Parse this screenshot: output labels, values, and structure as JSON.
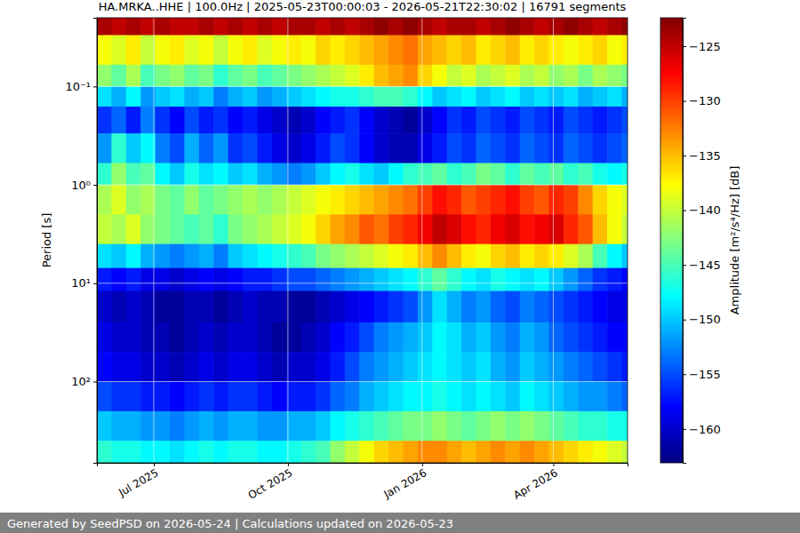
{
  "chart_data": {
    "type": "heatmap",
    "title": "HA.MRKA..HHE | 100.0Hz | 2025-05-23T00:00:03 - 2026-05-21T22:30:02 | 16791 segments",
    "y_label": "Period [s]",
    "footer": "Generated by SeedPSD on 2026-05-24 | Calculations updated on 2026-05-23",
    "log": "y",
    "grid": true,
    "xlim": [
      "2025-05-23T00:00:03",
      "2026-05-21T22:30:02"
    ],
    "xticks": [
      {
        "value": "2025-07-01",
        "label": "Jul 2025"
      },
      {
        "value": "2025-10-01",
        "label": "Oct 2025"
      },
      {
        "value": "2026-01-01",
        "label": "Jan 2026"
      },
      {
        "value": "2026-04-01",
        "label": "Apr 2026"
      }
    ],
    "ylim": [
      0.02,
      670
    ],
    "yticks": [
      {
        "value": 0.1,
        "label": "10⁻¹"
      },
      {
        "value": 1,
        "label": "10⁰"
      },
      {
        "value": 10,
        "label": "10¹"
      },
      {
        "value": 100,
        "label": "10²"
      }
    ],
    "x_bins": [
      "2025-05-23T00:00:03",
      "2025-06-02",
      "2025-06-12",
      "2025-06-22",
      "2025-07-02",
      "2025-07-12",
      "2025-07-22",
      "2025-08-01",
      "2025-08-11",
      "2025-08-21",
      "2025-08-31",
      "2025-09-10",
      "2025-09-20",
      "2025-09-30",
      "2025-10-10",
      "2025-10-20",
      "2025-10-30",
      "2025-11-09",
      "2025-11-19",
      "2025-11-29",
      "2025-12-09",
      "2025-12-19",
      "2025-12-29",
      "2026-01-08",
      "2026-01-18",
      "2026-01-28",
      "2026-02-07",
      "2026-02-17",
      "2026-02-27",
      "2026-03-09",
      "2026-03-19",
      "2026-03-29",
      "2026-04-08",
      "2026-04-18",
      "2026-04-28",
      "2026-05-08",
      "2026-05-18",
      "2026-05-21T22:30:02"
    ],
    "y_bins": [
      0.02,
      0.03,
      0.06,
      0.1,
      0.16,
      0.3,
      0.6,
      1,
      2,
      4,
      7,
      12,
      25,
      50,
      100,
      200,
      400,
      670
    ],
    "values": [
      [
        -124,
        -125,
        -124,
        -125,
        -124,
        -125,
        -125,
        -124,
        -125,
        -124,
        -125,
        -124,
        -125,
        -124,
        -124,
        -125,
        -124,
        -125,
        -124,
        -123,
        -124,
        -123,
        -124,
        -125,
        -124,
        -124,
        -125,
        -124,
        -123,
        -124,
        -125,
        -124,
        -123,
        -124,
        -125,
        -124,
        -123
      ],
      [
        -138,
        -139,
        -137,
        -140,
        -138,
        -137,
        -139,
        -138,
        -140,
        -138,
        -137,
        -139,
        -138,
        -137,
        -138,
        -136,
        -137,
        -136,
        -135,
        -134,
        -133,
        -132,
        -134,
        -135,
        -136,
        -135,
        -137,
        -136,
        -135,
        -137,
        -136,
        -137,
        -138,
        -137,
        -136,
        -138,
        -137
      ],
      [
        -142,
        -144,
        -141,
        -145,
        -143,
        -142,
        -144,
        -143,
        -146,
        -144,
        -143,
        -145,
        -144,
        -143,
        -142,
        -141,
        -140,
        -139,
        -137,
        -135,
        -134,
        -133,
        -136,
        -138,
        -140,
        -139,
        -141,
        -140,
        -139,
        -141,
        -140,
        -142,
        -141,
        -143,
        -141,
        -142,
        -143
      ],
      [
        -149,
        -151,
        -148,
        -152,
        -150,
        -149,
        -151,
        -150,
        -153,
        -151,
        -150,
        -152,
        -151,
        -150,
        -149,
        -148,
        -147,
        -147,
        -146,
        -145,
        -145,
        -146,
        -148,
        -150,
        -149,
        -148,
        -150,
        -149,
        -148,
        -150,
        -149,
        -150,
        -149,
        -151,
        -150,
        -149,
        -151
      ],
      [
        -156,
        -154,
        -157,
        -153,
        -156,
        -158,
        -155,
        -157,
        -156,
        -158,
        -157,
        -159,
        -160,
        -161,
        -160,
        -158,
        -157,
        -156,
        -158,
        -160,
        -161,
        -162,
        -160,
        -158,
        -156,
        -157,
        -155,
        -156,
        -157,
        -155,
        -156,
        -157,
        -155,
        -156,
        -157,
        -156,
        -155
      ],
      [
        -152,
        -146,
        -150,
        -148,
        -153,
        -155,
        -151,
        -154,
        -152,
        -156,
        -155,
        -157,
        -159,
        -160,
        -159,
        -157,
        -155,
        -156,
        -158,
        -160,
        -161,
        -161,
        -159,
        -157,
        -155,
        -156,
        -154,
        -155,
        -156,
        -154,
        -155,
        -156,
        -154,
        -155,
        -156,
        -155,
        -154
      ],
      [
        -146,
        -142,
        -145,
        -144,
        -148,
        -150,
        -147,
        -149,
        -148,
        -150,
        -149,
        -151,
        -152,
        -153,
        -152,
        -150,
        -148,
        -147,
        -149,
        -150,
        -148,
        -146,
        -145,
        -144,
        -146,
        -145,
        -143,
        -144,
        -146,
        -144,
        -145,
        -144,
        -146,
        -145,
        -147,
        -148,
        -147
      ],
      [
        -141,
        -139,
        -142,
        -141,
        -143,
        -144,
        -142,
        -144,
        -143,
        -142,
        -141,
        -142,
        -141,
        -140,
        -139,
        -138,
        -137,
        -136,
        -135,
        -134,
        -133,
        -132,
        -130,
        -128,
        -129,
        -131,
        -130,
        -129,
        -128,
        -130,
        -131,
        -129,
        -130,
        -133,
        -136,
        -138,
        -139
      ],
      [
        -140,
        -141,
        -139,
        -142,
        -143,
        -144,
        -145,
        -144,
        -146,
        -143,
        -142,
        -141,
        -140,
        -139,
        -138,
        -136,
        -134,
        -133,
        -131,
        -132,
        -130,
        -129,
        -127,
        -125,
        -126,
        -128,
        -129,
        -127,
        -126,
        -128,
        -127,
        -126,
        -129,
        -131,
        -135,
        -138,
        -140
      ],
      [
        -149,
        -150,
        -148,
        -151,
        -152,
        -153,
        -152,
        -151,
        -153,
        -150,
        -149,
        -148,
        -147,
        -146,
        -145,
        -143,
        -142,
        -141,
        -140,
        -139,
        -138,
        -137,
        -135,
        -133,
        -135,
        -137,
        -138,
        -136,
        -135,
        -137,
        -136,
        -137,
        -139,
        -141,
        -145,
        -148,
        -150
      ],
      [
        -157,
        -158,
        -157,
        -159,
        -159,
        -160,
        -159,
        -158,
        -159,
        -158,
        -157,
        -157,
        -156,
        -155,
        -155,
        -154,
        -153,
        -152,
        -151,
        -150,
        -149,
        -148,
        -146,
        -144,
        -146,
        -148,
        -149,
        -147,
        -148,
        -149,
        -148,
        -150,
        -152,
        -154,
        -156,
        -157,
        -158
      ],
      [
        -160,
        -161,
        -160,
        -161,
        -162,
        -162,
        -161,
        -161,
        -162,
        -161,
        -160,
        -161,
        -161,
        -162,
        -162,
        -161,
        -160,
        -159,
        -158,
        -157,
        -156,
        -155,
        -152,
        -149,
        -151,
        -153,
        -152,
        -154,
        -155,
        -153,
        -154,
        -155,
        -156,
        -157,
        -158,
        -159,
        -159
      ],
      [
        -159,
        -160,
        -160,
        -161,
        -161,
        -162,
        -161,
        -160,
        -161,
        -160,
        -160,
        -161,
        -162,
        -162,
        -161,
        -160,
        -158,
        -157,
        -155,
        -153,
        -152,
        -151,
        -150,
        -148,
        -149,
        -151,
        -150,
        -152,
        -153,
        -151,
        -152,
        -154,
        -155,
        -156,
        -157,
        -158,
        -158
      ],
      [
        -158,
        -159,
        -159,
        -160,
        -160,
        -161,
        -160,
        -159,
        -160,
        -159,
        -159,
        -160,
        -161,
        -160,
        -160,
        -159,
        -157,
        -155,
        -153,
        -152,
        -151,
        -150,
        -149,
        -148,
        -149,
        -150,
        -149,
        -151,
        -152,
        -150,
        -151,
        -152,
        -153,
        -154,
        -155,
        -156,
        -157
      ],
      [
        -155,
        -156,
        -156,
        -157,
        -157,
        -158,
        -157,
        -156,
        -157,
        -156,
        -156,
        -157,
        -158,
        -157,
        -157,
        -156,
        -154,
        -153,
        -151,
        -150,
        -149,
        -148,
        -148,
        -147,
        -148,
        -149,
        -148,
        -149,
        -150,
        -148,
        -149,
        -150,
        -151,
        -152,
        -152,
        -153,
        -154
      ],
      [
        -150,
        -151,
        -151,
        -152,
        -152,
        -153,
        -152,
        -151,
        -152,
        -151,
        -151,
        -152,
        -152,
        -151,
        -151,
        -150,
        -148,
        -147,
        -146,
        -145,
        -144,
        -143,
        -143,
        -142,
        -143,
        -144,
        -143,
        -142,
        -143,
        -142,
        -143,
        -144,
        -145,
        -146,
        -146,
        -147,
        -147
      ],
      [
        -146,
        -147,
        -147,
        -148,
        -148,
        -149,
        -148,
        -147,
        -148,
        -147,
        -147,
        -148,
        -148,
        -147,
        -146,
        -145,
        -142,
        -140,
        -138,
        -136,
        -135,
        -134,
        -133,
        -133,
        -134,
        -135,
        -134,
        -133,
        -134,
        -133,
        -134,
        -135,
        -136,
        -137,
        -138,
        -139,
        -140
      ]
    ],
    "colorbar": {
      "label": "Amplitude [m²/s⁴/Hz] [dB]",
      "range": [
        -163.1,
        -122.4
      ],
      "ticks": [
        {
          "value": -160,
          "label": "−160"
        },
        {
          "value": -155,
          "label": "−155"
        },
        {
          "value": -150,
          "label": "−150"
        },
        {
          "value": -145,
          "label": "−145"
        },
        {
          "value": -140,
          "label": "−140"
        },
        {
          "value": -135,
          "label": "−135"
        },
        {
          "value": -130,
          "label": "−130"
        },
        {
          "value": -125,
          "label": "−125"
        }
      ]
    }
  }
}
